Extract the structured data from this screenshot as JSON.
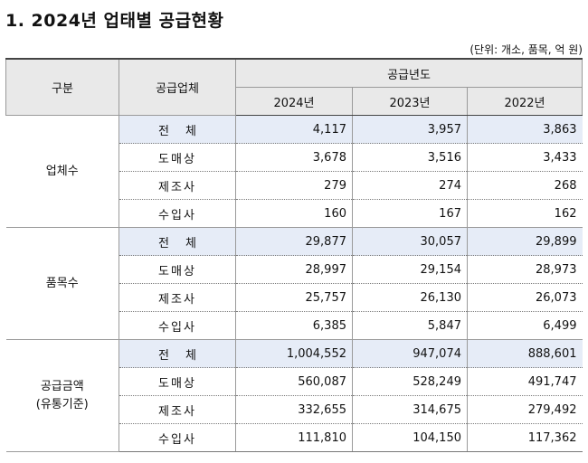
{
  "title": "1. 2024년 업태별 공급현황",
  "unit_note": "(단위: 개소, 품목, 억 원)",
  "header": {
    "category": "구분",
    "supplier": "공급업체",
    "year_group": "공급년도",
    "years": [
      "2024년",
      "2023년",
      "2022년"
    ]
  },
  "groups": [
    {
      "label_lines": [
        "업체수"
      ],
      "rows": [
        {
          "type": "전체",
          "values": [
            "4,117",
            "3,957",
            "3,863"
          ]
        },
        {
          "type": "도매상",
          "values": [
            "3,678",
            "3,516",
            "3,433"
          ]
        },
        {
          "type": "제조사",
          "values": [
            "279",
            "274",
            "268"
          ]
        },
        {
          "type": "수입사",
          "values": [
            "160",
            "167",
            "162"
          ]
        }
      ]
    },
    {
      "label_lines": [
        "품목수"
      ],
      "rows": [
        {
          "type": "전체",
          "values": [
            "29,877",
            "30,057",
            "29,899"
          ]
        },
        {
          "type": "도매상",
          "values": [
            "28,997",
            "29,154",
            "28,973"
          ]
        },
        {
          "type": "제조사",
          "values": [
            "25,757",
            "26,130",
            "26,073"
          ]
        },
        {
          "type": "수입사",
          "values": [
            "6,385",
            "5,847",
            "6,499"
          ]
        }
      ]
    },
    {
      "label_lines": [
        "공급금액",
        "(유통기준)"
      ],
      "rows": [
        {
          "type": "전체",
          "values": [
            "1,004,552",
            "947,074",
            "888,601"
          ]
        },
        {
          "type": "도매상",
          "values": [
            "560,087",
            "528,249",
            "491,747"
          ]
        },
        {
          "type": "제조사",
          "values": [
            "332,655",
            "314,675",
            "279,492"
          ]
        },
        {
          "type": "수입사",
          "values": [
            "111,810",
            "104,150",
            "117,362"
          ]
        }
      ]
    }
  ]
}
